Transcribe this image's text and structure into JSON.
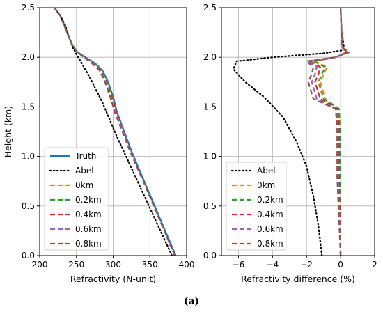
{
  "caption": "(a)",
  "colors": {
    "truth": "#1f77b4",
    "abel": "#000000",
    "0km": "#ff7f0e",
    "0.2km": "#2ca02c",
    "0.4km": "#d62728",
    "0.6km": "#9467bd",
    "0.8km": "#8c564b",
    "grid": "#b0b0b0"
  },
  "chart_data": [
    {
      "type": "line",
      "title": "",
      "xlabel": "Refractivity (N-unit)",
      "ylabel": "Height (km)",
      "xlim": [
        200,
        400
      ],
      "ylim": [
        0,
        2.5
      ],
      "xticks": [
        200,
        250,
        300,
        350,
        400
      ],
      "yticks": [
        0.0,
        0.5,
        1.0,
        1.5,
        2.0,
        2.5
      ],
      "xtick_labels": [
        "200",
        "250",
        "300",
        "350",
        "400"
      ],
      "ytick_labels": [
        "0.0",
        "0.5",
        "1.0",
        "1.5",
        "2.0",
        "2.5"
      ],
      "grid": true,
      "legend_position": "lower-left",
      "series": [
        {
          "name": "Truth",
          "style": "solid",
          "color": "#1f77b4",
          "x": [
            385,
            365,
            345,
            325,
            305,
            300,
            292,
            285,
            275,
            262,
            250,
            244,
            240,
            233,
            228,
            220
          ],
          "y": [
            0.0,
            0.35,
            0.7,
            1.05,
            1.45,
            1.6,
            1.77,
            1.87,
            1.94,
            2.0,
            2.06,
            2.13,
            2.2,
            2.33,
            2.42,
            2.5
          ]
        },
        {
          "name": "Abel",
          "style": "dotted",
          "color": "#000000",
          "x": [
            380,
            355,
            330,
            305,
            285,
            268,
            258,
            250,
            245,
            240,
            235,
            228,
            220
          ],
          "y": [
            0.0,
            0.4,
            0.8,
            1.2,
            1.55,
            1.8,
            1.93,
            2.03,
            2.1,
            2.2,
            2.32,
            2.42,
            2.5
          ]
        },
        {
          "name": "0km",
          "style": "dashed",
          "color": "#ff7f0e",
          "x": [
            384,
            364,
            344,
            324,
            304,
            299,
            291,
            284,
            274,
            261,
            250,
            244,
            240,
            233,
            228,
            220
          ],
          "y": [
            0.0,
            0.35,
            0.7,
            1.05,
            1.45,
            1.6,
            1.77,
            1.87,
            1.94,
            2.0,
            2.06,
            2.13,
            2.2,
            2.33,
            2.42,
            2.5
          ]
        },
        {
          "name": "0.2km",
          "style": "dashed",
          "color": "#2ca02c",
          "x": [
            384,
            364,
            344,
            324,
            304,
            299,
            291,
            284,
            274,
            261,
            250,
            244,
            240,
            233,
            228,
            220
          ],
          "y": [
            0.0,
            0.35,
            0.7,
            1.05,
            1.45,
            1.6,
            1.77,
            1.87,
            1.94,
            2.0,
            2.06,
            2.13,
            2.2,
            2.33,
            2.42,
            2.5
          ]
        },
        {
          "name": "0.4km",
          "style": "dashed",
          "color": "#d62728",
          "x": [
            384,
            364,
            344,
            324,
            304,
            298,
            290,
            283,
            273,
            261,
            250,
            244,
            240,
            233,
            228,
            220
          ],
          "y": [
            0.0,
            0.35,
            0.7,
            1.05,
            1.45,
            1.6,
            1.77,
            1.87,
            1.94,
            2.0,
            2.06,
            2.13,
            2.2,
            2.33,
            2.42,
            2.5
          ]
        },
        {
          "name": "0.6km",
          "style": "dashed",
          "color": "#9467bd",
          "x": [
            384,
            364,
            344,
            324,
            303,
            297,
            289,
            282,
            272,
            260,
            250,
            244,
            240,
            233,
            228,
            220
          ],
          "y": [
            0.0,
            0.35,
            0.7,
            1.05,
            1.45,
            1.6,
            1.77,
            1.87,
            1.94,
            2.0,
            2.06,
            2.13,
            2.2,
            2.33,
            2.42,
            2.5
          ]
        },
        {
          "name": "0.8km",
          "style": "dashed",
          "color": "#8c564b",
          "x": [
            384,
            364,
            344,
            323,
            302,
            296,
            288,
            281,
            271,
            260,
            250,
            244,
            240,
            233,
            228,
            220
          ],
          "y": [
            0.0,
            0.35,
            0.7,
            1.05,
            1.45,
            1.6,
            1.77,
            1.87,
            1.94,
            2.0,
            2.06,
            2.13,
            2.2,
            2.33,
            2.42,
            2.5
          ]
        }
      ]
    },
    {
      "type": "line",
      "title": "",
      "xlabel": "Refractivity difference (%)",
      "ylabel": "",
      "xlim": [
        -7,
        2
      ],
      "ylim": [
        0,
        2.5
      ],
      "xticks": [
        -6,
        -4,
        -2,
        0,
        2
      ],
      "yticks": [
        0.0,
        0.5,
        1.0,
        1.5,
        2.0,
        2.5
      ],
      "xtick_labels": [
        "−6",
        "−4",
        "−2",
        "0",
        "2"
      ],
      "ytick_labels": [
        "0.0",
        "0.5",
        "1.0",
        "1.5",
        "2.0",
        "2.5"
      ],
      "grid": true,
      "legend_position": "lower-left",
      "series": [
        {
          "name": "Abel",
          "style": "dotted",
          "color": "#000000",
          "x": [
            -1.1,
            -1.3,
            -1.6,
            -2.0,
            -2.6,
            -3.4,
            -4.5,
            -5.6,
            -6.3,
            -6.1,
            -4.0,
            -1.0,
            0.1,
            0.2,
            0.05,
            0.0
          ],
          "y": [
            0.0,
            0.3,
            0.6,
            0.9,
            1.15,
            1.4,
            1.6,
            1.75,
            1.88,
            1.96,
            2.0,
            2.04,
            2.07,
            2.1,
            2.3,
            2.5
          ]
        },
        {
          "name": "0km",
          "style": "dashed",
          "color": "#ff7f0e",
          "x": [
            0.0,
            -0.05,
            -0.05,
            -0.1,
            -0.9,
            -1.2,
            -1.0,
            -0.8,
            -1.5,
            -0.3,
            0.3,
            0.1,
            0.05,
            0.0
          ],
          "y": [
            0.0,
            0.8,
            1.3,
            1.48,
            1.58,
            1.75,
            1.83,
            1.9,
            1.96,
            2.0,
            2.05,
            2.1,
            2.3,
            2.5
          ]
        },
        {
          "name": "0.2km",
          "style": "dashed",
          "color": "#2ca02c",
          "x": [
            0.0,
            -0.05,
            -0.05,
            -0.1,
            -1.0,
            -1.3,
            -1.1,
            -0.9,
            -1.6,
            -0.3,
            0.35,
            0.1,
            0.05,
            0.0
          ],
          "y": [
            0.0,
            0.8,
            1.3,
            1.48,
            1.58,
            1.75,
            1.83,
            1.9,
            1.96,
            2.0,
            2.05,
            2.1,
            2.3,
            2.5
          ]
        },
        {
          "name": "0.4km",
          "style": "dashed",
          "color": "#d62728",
          "x": [
            0.0,
            -0.1,
            -0.1,
            -0.2,
            -1.2,
            -1.5,
            -1.3,
            -1.2,
            -1.8,
            -0.3,
            0.4,
            0.1,
            0.05,
            0.0
          ],
          "y": [
            0.0,
            0.8,
            1.3,
            1.48,
            1.58,
            1.75,
            1.83,
            1.9,
            1.96,
            2.0,
            2.05,
            2.1,
            2.3,
            2.5
          ]
        },
        {
          "name": "0.6km",
          "style": "dashed",
          "color": "#9467bd",
          "x": [
            0.0,
            -0.15,
            -0.15,
            -0.25,
            -1.4,
            -1.7,
            -1.5,
            -1.4,
            -1.9,
            -0.3,
            0.45,
            0.1,
            0.05,
            0.0
          ],
          "y": [
            0.0,
            0.8,
            1.3,
            1.48,
            1.58,
            1.75,
            1.83,
            1.9,
            1.96,
            2.0,
            2.05,
            2.1,
            2.3,
            2.5
          ]
        },
        {
          "name": "0.8km",
          "style": "dashed",
          "color": "#8c564b",
          "x": [
            0.0,
            -0.2,
            -0.2,
            -0.3,
            -1.6,
            -1.9,
            -1.7,
            -1.6,
            -2.0,
            -0.3,
            0.5,
            0.1,
            0.05,
            0.0
          ],
          "y": [
            0.0,
            0.8,
            1.3,
            1.48,
            1.58,
            1.75,
            1.83,
            1.9,
            1.96,
            2.0,
            2.05,
            2.1,
            2.3,
            2.5
          ]
        }
      ]
    }
  ]
}
